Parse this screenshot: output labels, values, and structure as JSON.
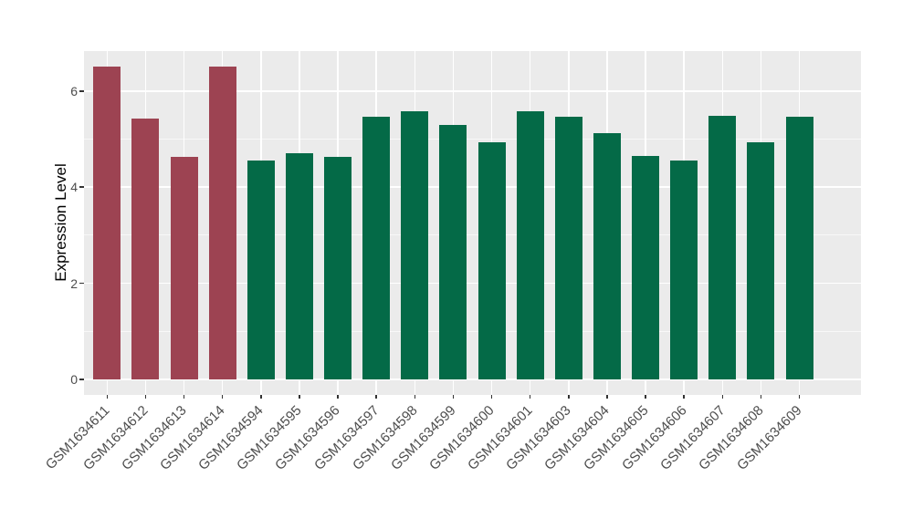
{
  "chart_data": {
    "type": "bar",
    "title": "",
    "xlabel": "",
    "ylabel": "Expression Level",
    "categories": [
      "GSM1634611",
      "GSM1634612",
      "GSM1634613",
      "GSM1634614",
      "GSM1634594",
      "GSM1634595",
      "GSM1634596",
      "GSM1634597",
      "GSM1634598",
      "GSM1634599",
      "GSM1634600",
      "GSM1634601",
      "GSM1634603",
      "GSM1634604",
      "GSM1634605",
      "GSM1634606",
      "GSM1634607",
      "GSM1634608",
      "GSM1634609"
    ],
    "values": [
      6.5,
      5.42,
      4.63,
      6.5,
      4.56,
      4.71,
      4.63,
      5.47,
      5.57,
      5.3,
      4.93,
      5.58,
      5.46,
      5.12,
      4.65,
      4.56,
      5.48,
      4.93,
      5.46
    ],
    "bar_colors": [
      "#9D4352",
      "#9D4352",
      "#9D4352",
      "#9D4352",
      "#046A47",
      "#046A47",
      "#046A47",
      "#046A47",
      "#046A47",
      "#046A47",
      "#046A47",
      "#046A47",
      "#046A47",
      "#046A47",
      "#046A47",
      "#046A47",
      "#046A47",
      "#046A47",
      "#046A47"
    ],
    "y_ticks": [
      0,
      2,
      4,
      6
    ],
    "y_tick_labels": [
      "0",
      "2",
      "4",
      "6"
    ],
    "y_minor_ticks": [
      1,
      3,
      5
    ],
    "ylim": [
      -0.32,
      6.83
    ],
    "x_tick_rotation_deg": 45,
    "grid": true,
    "legend": "none",
    "panel_background": "#EBEBEB",
    "grid_color": "#FFFFFF",
    "tick_color": "#333333",
    "tick_label_color": "#4D4D4D"
  }
}
